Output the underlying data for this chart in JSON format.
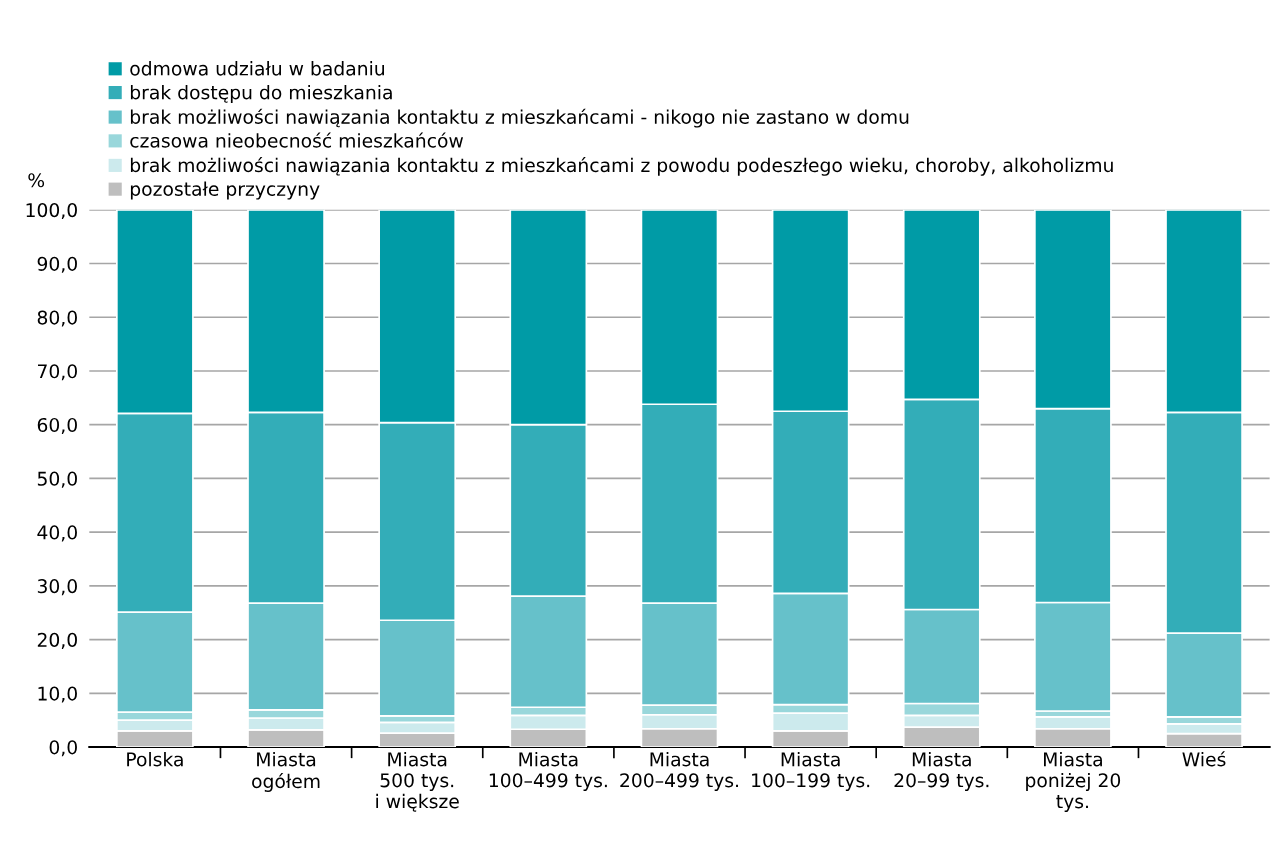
{
  "chart_data": {
    "type": "bar",
    "stacked": true,
    "ylabel": "%",
    "categories": [
      "Polska",
      "Miasta\nogółem",
      "Miasta\n500 tys.\ni większe",
      "Miasta\n100–499 tys.",
      "Miasta\n200–499 tys.",
      "Miasta\n100–199 tys.",
      "Miasta\n20–99 tys.",
      "Miasta\nponiżej 20\ntys.",
      "Wieś"
    ],
    "series": [
      {
        "name": "pozostałe przyczyny",
        "color": "#bebebe",
        "values": [
          3.0,
          3.2,
          2.6,
          3.3,
          3.4,
          3.0,
          3.7,
          3.4,
          2.5
        ]
      },
      {
        "name": "brak możliwości nawiązania kontaktu z mieszkańcami z powodu podeszłego wieku, choroby, alkoholizmu",
        "color": "#cceaed",
        "values": [
          2.0,
          2.2,
          2.0,
          2.6,
          2.6,
          3.3,
          2.2,
          2.2,
          1.8
        ]
      },
      {
        "name": "czasowa nieobecność mieszkańców",
        "color": "#99d7db",
        "values": [
          1.5,
          1.5,
          1.2,
          1.5,
          1.8,
          1.6,
          2.2,
          1.1,
          1.3
        ]
      },
      {
        "name": "brak możliwości nawiązania kontaktu z mieszkańcami - nikogo nie zastano w domu",
        "color": "#66c1ca",
        "values": [
          18.6,
          19.9,
          17.8,
          20.7,
          19.0,
          20.7,
          17.5,
          20.2,
          15.6
        ]
      },
      {
        "name": "brak dostępu do mieszkania",
        "color": "#33adb8",
        "values": [
          37.0,
          35.5,
          36.8,
          31.9,
          37.0,
          33.9,
          39.1,
          36.1,
          41.1
        ]
      },
      {
        "name": "odmowa udziału w badaniu",
        "color": "#009ba6",
        "values": [
          37.9,
          37.7,
          39.6,
          40.0,
          36.2,
          37.5,
          35.3,
          37.0,
          37.7
        ]
      }
    ],
    "ylim": [
      0,
      100
    ],
    "yticks": [
      {
        "value": 0,
        "label": "0,0"
      },
      {
        "value": 10,
        "label": "10,0"
      },
      {
        "value": 20,
        "label": "20,0"
      },
      {
        "value": 30,
        "label": "30,0"
      },
      {
        "value": 40,
        "label": "40,0"
      },
      {
        "value": 50,
        "label": "50,0"
      },
      {
        "value": 60,
        "label": "60,0"
      },
      {
        "value": 70,
        "label": "70,0"
      },
      {
        "value": 80,
        "label": "80,0"
      },
      {
        "value": 90,
        "label": "90,0"
      },
      {
        "value": 100,
        "label": "100,0"
      }
    ],
    "grid": "y",
    "legend": "top left"
  }
}
